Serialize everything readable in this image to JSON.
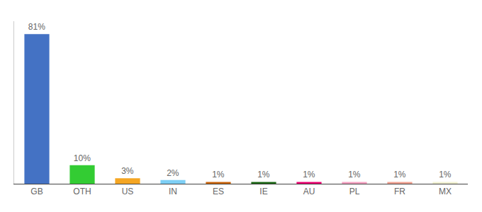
{
  "chart_data": {
    "type": "bar",
    "categories": [
      "GB",
      "OTH",
      "US",
      "IN",
      "ES",
      "IE",
      "AU",
      "PL",
      "FR",
      "MX"
    ],
    "values": [
      81,
      10,
      3,
      2,
      1,
      1,
      1,
      1,
      1,
      1
    ],
    "value_labels": [
      "81%",
      "10%",
      "3%",
      "2%",
      "1%",
      "1%",
      "1%",
      "1%",
      "1%",
      "1%"
    ],
    "colors": [
      "#4472c4",
      "#33cc33",
      "#f5a623",
      "#7ecff5",
      "#c8630a",
      "#1a6614",
      "#e8006e",
      "#f4a0c0",
      "#f0a090",
      "#f0f0d0"
    ],
    "data_labels": true,
    "ylim": [
      0,
      88
    ],
    "tick_labels": "x",
    "grid": false
  }
}
